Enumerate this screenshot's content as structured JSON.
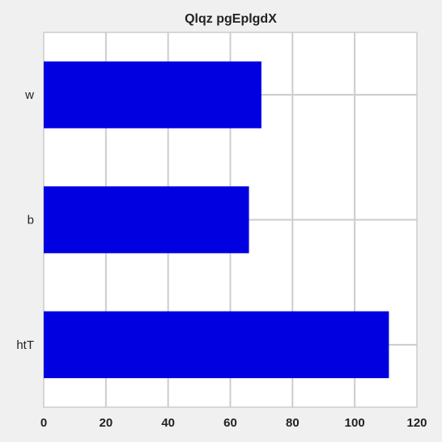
{
  "chart_data": {
    "type": "bar",
    "orientation": "horizontal",
    "title": "Qlqz  pgEplgdX",
    "xlabel": "",
    "ylabel": "",
    "categories": [
      "w",
      "b",
      "htT"
    ],
    "values": [
      70,
      66,
      111
    ],
    "xlim": [
      0,
      120
    ],
    "xticks": [
      0,
      20,
      40,
      60,
      80,
      100,
      120
    ],
    "grid": true,
    "legend": "none",
    "colors": {
      "bar": "#0000e0",
      "background": "#f0f0f0",
      "plot_background": "#ffffff",
      "grid": "#cccccc"
    }
  }
}
